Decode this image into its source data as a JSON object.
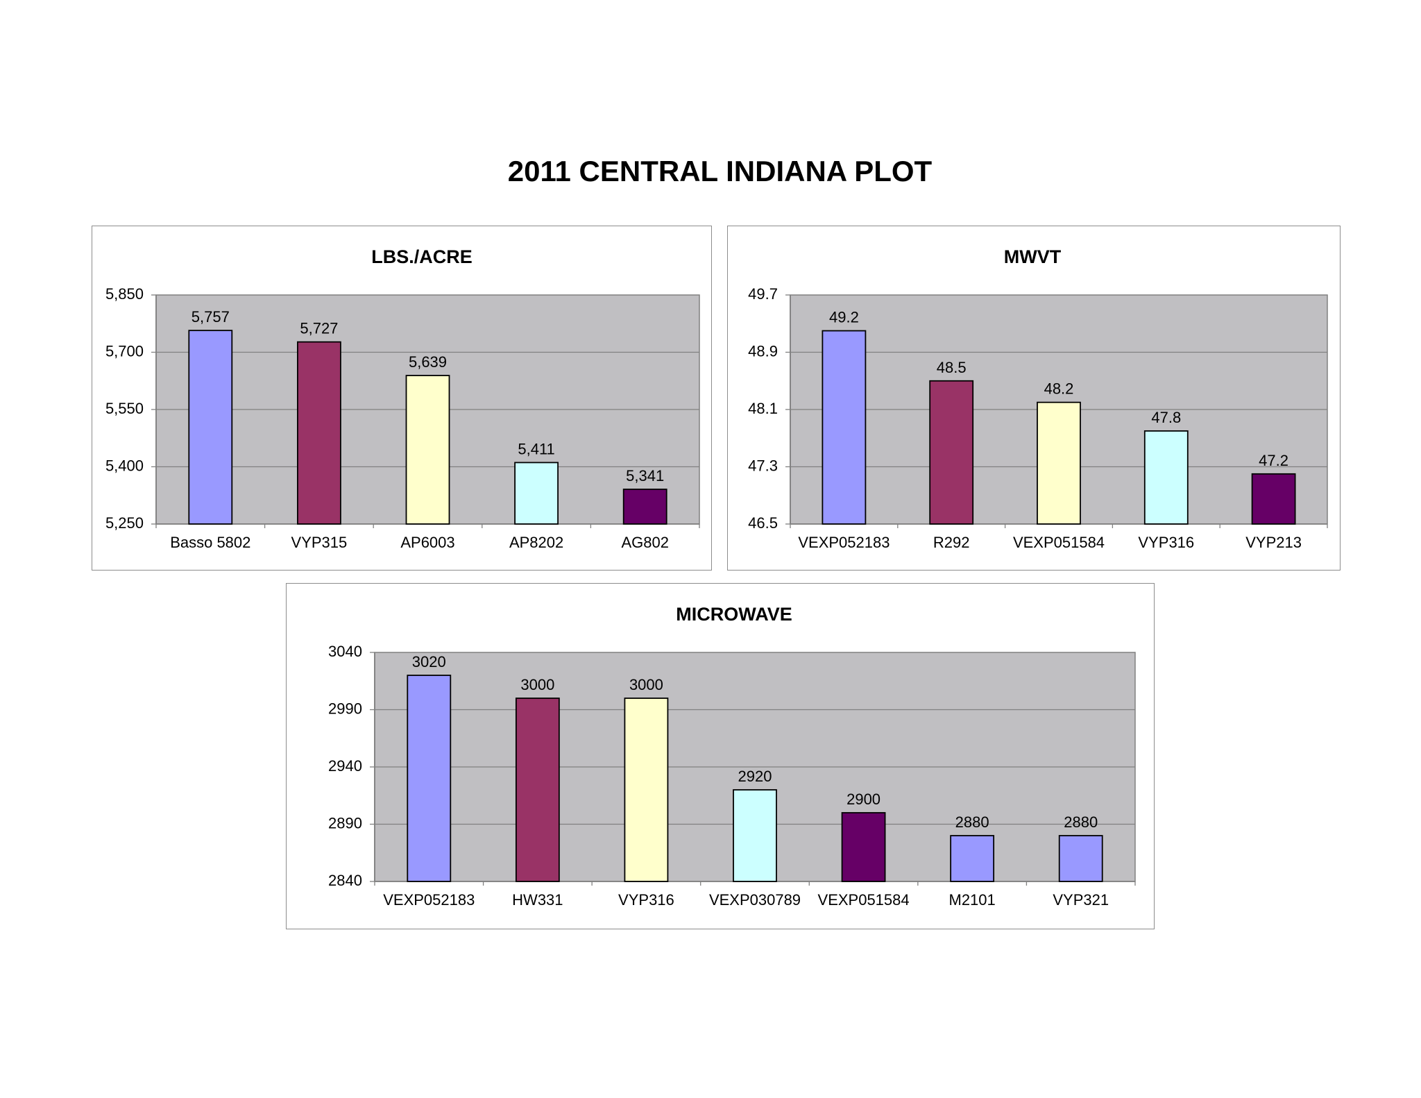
{
  "page_title": "2011 CENTRAL INDIANA PLOT",
  "colors": {
    "plot_bg": "#c0bfc2",
    "gridline": "#808080",
    "bar_stroke": "#000000"
  },
  "chart_data": [
    {
      "type": "bar",
      "title": "LBS./ACRE",
      "categories": [
        "Basso 5802",
        "VYP315",
        "AP6003",
        "AP8202",
        "AG802"
      ],
      "values": [
        5757,
        5727,
        5639,
        5411,
        5341
      ],
      "value_labels": [
        "5,757",
        "5,727",
        "5,639",
        "5,411",
        "5,341"
      ],
      "bar_colors": [
        "#9999ff",
        "#993366",
        "#ffffcc",
        "#ccffff",
        "#660066"
      ],
      "ylim": [
        5250,
        5850
      ],
      "yticks": [
        5250,
        5400,
        5550,
        5700,
        5850
      ],
      "ytick_labels": [
        "5,250",
        "5,400",
        "5,550",
        "5,700",
        "5,850"
      ],
      "grid": true,
      "legend": "none"
    },
    {
      "type": "bar",
      "title": "MWVT",
      "categories": [
        "VEXP052183",
        "R292",
        "VEXP051584",
        "VYP316",
        "VYP213"
      ],
      "values": [
        49.2,
        48.5,
        48.2,
        47.8,
        47.2
      ],
      "value_labels": [
        "49.2",
        "48.5",
        "48.2",
        "47.8",
        "47.2"
      ],
      "bar_colors": [
        "#9999ff",
        "#993366",
        "#ffffcc",
        "#ccffff",
        "#660066"
      ],
      "ylim": [
        46.5,
        49.7
      ],
      "yticks": [
        46.5,
        47.3,
        48.1,
        48.9,
        49.7
      ],
      "ytick_labels": [
        "46.5",
        "47.3",
        "48.1",
        "48.9",
        "49.7"
      ],
      "grid": true,
      "legend": "none"
    },
    {
      "type": "bar",
      "title": "MICROWAVE",
      "categories": [
        "VEXP052183",
        "HW331",
        "VYP316",
        "VEXP030789",
        "VEXP051584",
        "M2101",
        "VYP321"
      ],
      "values": [
        3020,
        3000,
        3000,
        2920,
        2900,
        2880,
        2880
      ],
      "value_labels": [
        "3020",
        "3000",
        "3000",
        "2920",
        "2900",
        "2880",
        "2880"
      ],
      "bar_colors": [
        "#9999ff",
        "#993366",
        "#ffffcc",
        "#ccffff",
        "#660066",
        "#9999ff",
        "#9999ff"
      ],
      "ylim": [
        2840,
        3040
      ],
      "yticks": [
        2840,
        2890,
        2940,
        2990,
        3040
      ],
      "ytick_labels": [
        "2840",
        "2890",
        "2940",
        "2990",
        "3040"
      ],
      "grid": true,
      "legend": "none"
    }
  ]
}
